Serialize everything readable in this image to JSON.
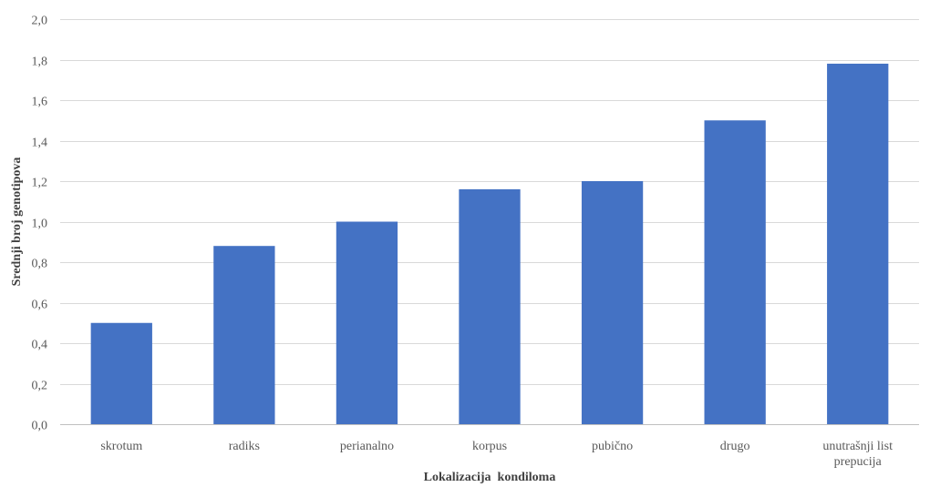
{
  "chart_data": {
    "type": "bar",
    "categories": [
      "skrotum",
      "radiks",
      "perianalno",
      "korpus",
      "pubično",
      "drugo",
      "unutrašnji list prepucija"
    ],
    "category_lines": [
      [
        "skrotum"
      ],
      [
        "radiks"
      ],
      [
        "perianalno"
      ],
      [
        "korpus"
      ],
      [
        "pubično"
      ],
      [
        "drugo"
      ],
      [
        "unutrašnji list",
        "prepucija"
      ]
    ],
    "values": [
      0.5,
      0.88,
      1.0,
      1.16,
      1.2,
      1.5,
      1.78
    ],
    "title": "",
    "xlabel": "Lokalizacija  kondiloma",
    "ylabel": "Srednji broj genotipova",
    "ylim": [
      0,
      2.0
    ],
    "yticks": [
      "0,0",
      "0,2",
      "0,4",
      "0,6",
      "0,8",
      "1,0",
      "1,2",
      "1,4",
      "1,6",
      "1,8",
      "2,0"
    ],
    "grid": true,
    "legend": "none",
    "bar_color": "#4472c4"
  }
}
